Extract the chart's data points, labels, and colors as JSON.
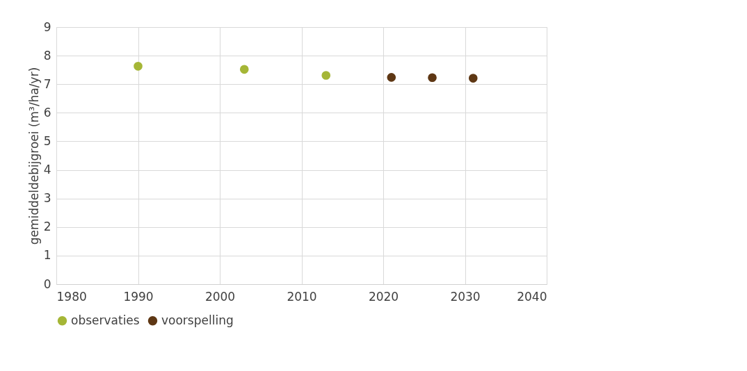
{
  "chart_data": {
    "type": "scatter",
    "ylabel": "gemiddeldebijgroei (m³/ha/yr)",
    "series": [
      {
        "name": "observaties",
        "color": "#a5b636",
        "x": [
          1990,
          2003,
          2013
        ],
        "values": [
          7.63,
          7.52,
          7.31
        ]
      },
      {
        "name": "voorspelling",
        "color": "#5e3714",
        "x": [
          2021,
          2026,
          2031
        ],
        "values": [
          7.24,
          7.23,
          7.21
        ]
      }
    ],
    "xlim": [
      1980,
      2040
    ],
    "xticks": [
      1980,
      1990,
      2000,
      2010,
      2020,
      2030,
      2040
    ],
    "ylim": [
      0,
      9
    ],
    "yticks": [
      0,
      1,
      2,
      3,
      4,
      5,
      6,
      7,
      8,
      9
    ],
    "grid": true,
    "legend": "bottom"
  }
}
